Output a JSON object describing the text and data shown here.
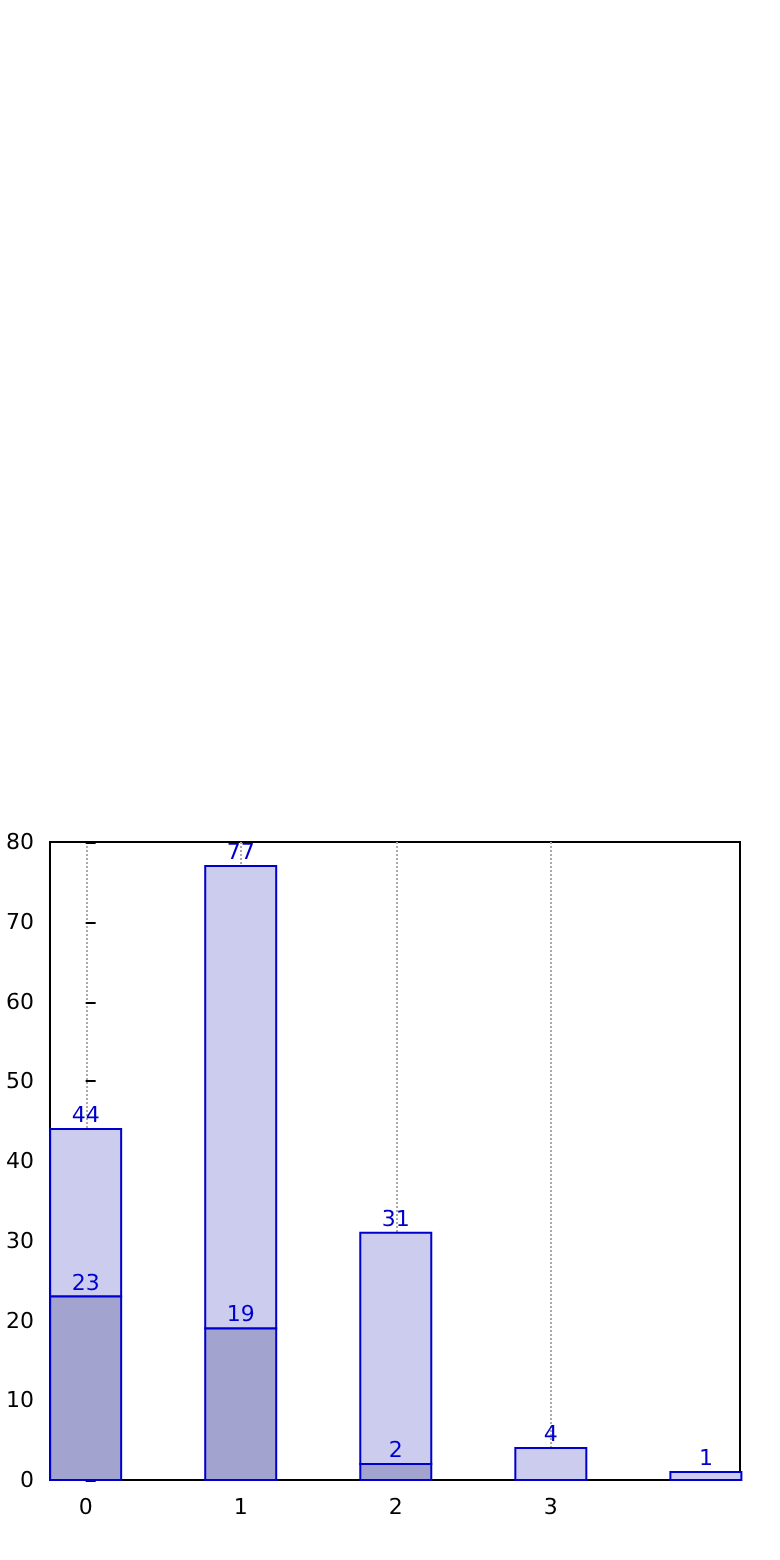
{
  "chart_data": {
    "type": "bar",
    "x": [
      0,
      1,
      2,
      3,
      4
    ],
    "xlim": [
      -0.23,
      4.22
    ],
    "xticks": [
      0,
      1,
      2,
      3
    ],
    "ylim": [
      0,
      80
    ],
    "yticks": [
      0,
      10,
      20,
      30,
      40,
      50,
      60,
      70,
      80
    ],
    "grid": "x",
    "stacked": true,
    "series": [
      {
        "color": "#a3a3d0",
        "values": [
          23,
          19,
          2,
          null,
          null
        ],
        "value_labels": [
          "23",
          "19",
          "2",
          null,
          null
        ]
      },
      {
        "color": "#ccccee",
        "values": [
          21,
          58,
          29,
          4,
          1
        ]
      }
    ],
    "totals": [
      "44",
      "77",
      "31",
      "4",
      "1"
    ]
  }
}
